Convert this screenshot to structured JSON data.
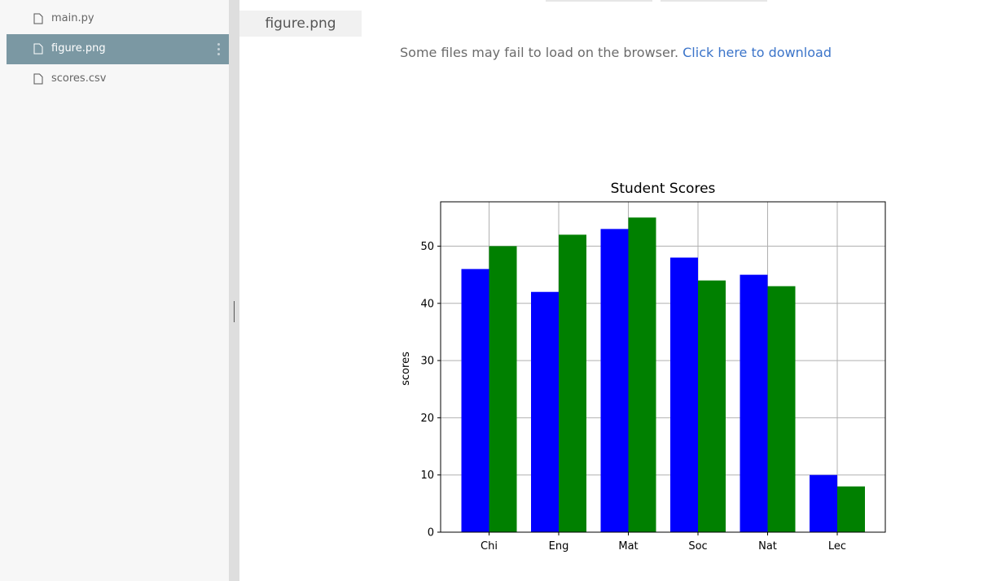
{
  "sidebar": {
    "files": [
      {
        "label": "main.py",
        "icon": "file-icon",
        "selected": false
      },
      {
        "label": "figure.png",
        "icon": "file-icon",
        "selected": true
      },
      {
        "label": "scores.csv",
        "icon": "file-icon",
        "selected": false
      }
    ]
  },
  "viewer": {
    "tab_label": "figure.png",
    "notice_text": "Some files may fail to load on the browser. ",
    "download_link": "Click here to download"
  },
  "chart_data": {
    "type": "bar",
    "title": "Student Scores",
    "ylabel": "scores",
    "xlabel": "",
    "categories": [
      "Chi",
      "Eng",
      "Mat",
      "Soc",
      "Nat",
      "Lec"
    ],
    "series": [
      {
        "color": "#0000ff",
        "values": [
          46,
          42,
          53,
          48,
          45,
          10
        ]
      },
      {
        "color": "#008000",
        "values": [
          50,
          52,
          55,
          44,
          43,
          8
        ]
      }
    ],
    "ylim": [
      0,
      57.75
    ],
    "yticks": [
      0,
      10,
      20,
      30,
      40,
      50
    ],
    "grid": true
  },
  "colors": {
    "selected_bg": "#7b98a3",
    "link": "#3b74c9"
  }
}
